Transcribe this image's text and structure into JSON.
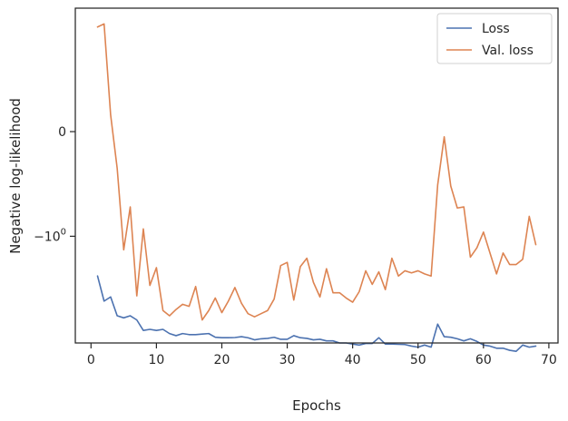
{
  "chart_data": {
    "type": "line",
    "xlabel": "Epochs",
    "ylabel": "Negative log-likelihood",
    "xlim": [
      -2.4,
      71.4
    ],
    "x_ticks": [
      {
        "value": 0,
        "label": "0"
      },
      {
        "value": 10,
        "label": "10"
      },
      {
        "value": 20,
        "label": "20"
      },
      {
        "value": 30,
        "label": "30"
      },
      {
        "value": 40,
        "label": "40"
      },
      {
        "value": 50,
        "label": "50"
      },
      {
        "value": 60,
        "label": "60"
      },
      {
        "value": 70,
        "label": "70"
      }
    ],
    "y_scale": "symlog",
    "ylim": [
      -2.02,
      1.18
    ],
    "y_ticks": [
      {
        "value": 0,
        "label": "0",
        "sup": ""
      },
      {
        "value": -1,
        "label": "−10",
        "sup": "0"
      }
    ],
    "grid": false,
    "legend": "top-right",
    "series": [
      {
        "name": "Loss",
        "color": "#4c72b0",
        "x": [
          1,
          2,
          3,
          4,
          5,
          6,
          7,
          8,
          9,
          10,
          11,
          12,
          13,
          14,
          15,
          16,
          17,
          18,
          19,
          20,
          21,
          22,
          23,
          24,
          25,
          26,
          27,
          28,
          29,
          30,
          31,
          32,
          33,
          34,
          35,
          36,
          37,
          38,
          39,
          40,
          41,
          42,
          43,
          44,
          45,
          46,
          47,
          48,
          49,
          50,
          51,
          52,
          53,
          54,
          55,
          56,
          57,
          58,
          59,
          60,
          61,
          62,
          63,
          64,
          65,
          66,
          67,
          68
        ],
        "y": [
          -1.38,
          -1.62,
          -1.58,
          -1.76,
          -1.78,
          -1.76,
          -1.8,
          -1.9,
          -1.89,
          -1.9,
          -1.89,
          -1.93,
          -1.95,
          -1.93,
          -1.94,
          -1.94,
          -1.935,
          -1.93,
          -1.965,
          -1.97,
          -1.97,
          -1.968,
          -1.96,
          -1.97,
          -1.99,
          -1.98,
          -1.976,
          -1.966,
          -1.985,
          -1.985,
          -1.95,
          -1.97,
          -1.976,
          -1.99,
          -1.985,
          -2.0,
          -2.0,
          -2.02,
          -2.02,
          -2.03,
          -2.04,
          -2.025,
          -2.025,
          -1.97,
          -2.03,
          -2.03,
          -2.033,
          -2.035,
          -2.05,
          -2.06,
          -2.04,
          -2.06,
          -1.84,
          -1.96,
          -1.965,
          -1.98,
          -2.0,
          -1.98,
          -2.005,
          -2.04,
          -2.05,
          -2.07,
          -2.07,
          -2.09,
          -2.1,
          -2.04,
          -2.06,
          -2.05
        ]
      },
      {
        "name": "Val. loss",
        "color": "#dd8452",
        "x": [
          1,
          2,
          3,
          4,
          5,
          6,
          7,
          8,
          9,
          10,
          11,
          12,
          13,
          14,
          15,
          16,
          17,
          18,
          19,
          20,
          21,
          22,
          23,
          24,
          25,
          26,
          27,
          28,
          29,
          30,
          31,
          32,
          33,
          34,
          35,
          36,
          37,
          38,
          39,
          40,
          41,
          42,
          43,
          44,
          45,
          46,
          47,
          48,
          49,
          50,
          51,
          52,
          53,
          54,
          55,
          56,
          57,
          58,
          59,
          60,
          61,
          62,
          63,
          64,
          65,
          66,
          67,
          68
        ],
        "y": [
          1.0,
          1.03,
          0.16,
          -0.35,
          -1.13,
          -0.72,
          -1.57,
          -0.93,
          -1.47,
          -1.3,
          -1.71,
          -1.76,
          -1.7,
          -1.65,
          -1.67,
          -1.48,
          -1.8,
          -1.71,
          -1.59,
          -1.73,
          -1.62,
          -1.49,
          -1.64,
          -1.74,
          -1.77,
          -1.74,
          -1.71,
          -1.6,
          -1.28,
          -1.25,
          -1.61,
          -1.29,
          -1.21,
          -1.44,
          -1.58,
          -1.31,
          -1.54,
          -1.54,
          -1.59,
          -1.63,
          -1.53,
          -1.33,
          -1.46,
          -1.34,
          -1.51,
          -1.21,
          -1.38,
          -1.33,
          -1.35,
          -1.33,
          -1.36,
          -1.38,
          -0.51,
          -0.05,
          -0.52,
          -0.73,
          -0.72,
          -1.2,
          -1.11,
          -0.96,
          -1.16,
          -1.36,
          -1.16,
          -1.27,
          -1.27,
          -1.22,
          -0.81,
          -1.08
        ]
      }
    ]
  }
}
